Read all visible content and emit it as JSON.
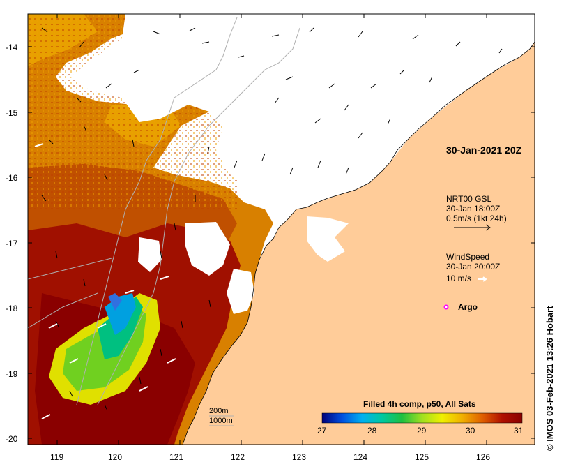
{
  "map": {
    "timestamp": "30-Jan-2021 20Z",
    "current_legend": {
      "title": "NRT00 GSL",
      "time": "30-Jan 18:00Z",
      "scale": "0.5m/s (1kt 24h)"
    },
    "wind_legend": {
      "title": "WindSpeed",
      "time": "30-Jan 20:00Z",
      "scale": "10 m/s"
    },
    "argo_label": "Argo",
    "isobath_labels": [
      "200m",
      "1000m"
    ],
    "colorbar": {
      "title": "Filled 4h comp, p50, All Sats",
      "ticks": [
        "27",
        "28",
        "29",
        "30",
        "31"
      ],
      "range": [
        27,
        31
      ],
      "colors": [
        "#00007a",
        "#0050e0",
        "#00b0f0",
        "#00c8a0",
        "#20c040",
        "#a0e020",
        "#f0f000",
        "#f0b000",
        "#e06000",
        "#b01000",
        "#8a0000"
      ]
    },
    "lon_ticks": [
      "119",
      "120",
      "121",
      "122",
      "123",
      "124",
      "125",
      "126"
    ],
    "lat_ticks": [
      "-14",
      "-15",
      "-16",
      "-17",
      "-18",
      "-19",
      "-20"
    ],
    "credit": "© IMOS 03-Feb-2021 13:26 Hobart",
    "land_color": "#ffcc99",
    "no_data_color": "#ffffff"
  }
}
